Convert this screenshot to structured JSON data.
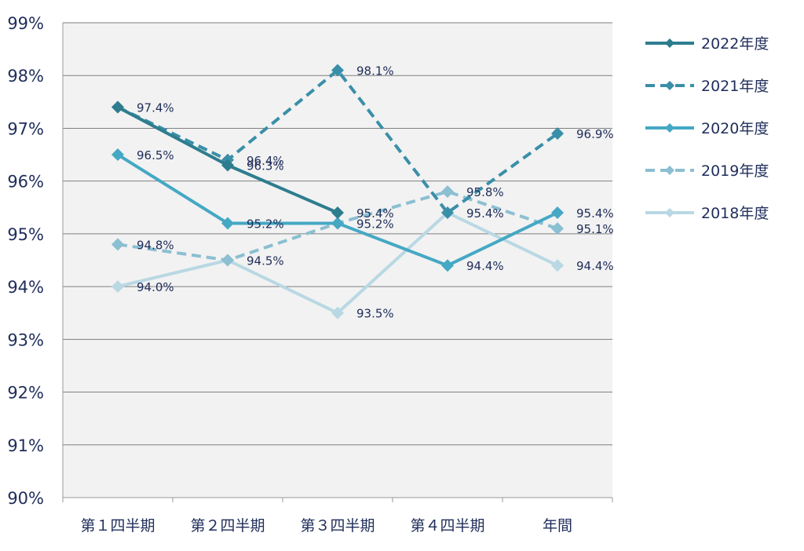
{
  "chart_data": {
    "type": "line",
    "title": "",
    "xlabel": "",
    "ylabel": "",
    "categories": [
      "第１四半期",
      "第２四半期",
      "第３四半期",
      "第４四半期",
      "年間"
    ],
    "ylim": [
      90,
      99
    ],
    "y_ticks": [
      "90%",
      "91%",
      "92%",
      "93%",
      "94%",
      "95%",
      "96%",
      "97%",
      "98%",
      "99%"
    ],
    "y_tick_values": [
      90,
      91,
      92,
      93,
      94,
      95,
      96,
      97,
      98,
      99
    ],
    "grid": true,
    "legend_position": "right",
    "series": [
      {
        "name": "2022年度",
        "color": "#2e7d8f",
        "dashed": false,
        "values": [
          97.4,
          96.3,
          95.4,
          null,
          null
        ],
        "labels": [
          "97.4%",
          "96.3%",
          "95.4%",
          null,
          null
        ]
      },
      {
        "name": "2021年度",
        "color": "#3a8fa8",
        "dashed": true,
        "values": [
          97.4,
          96.4,
          98.1,
          95.4,
          96.9
        ],
        "labels": [
          null,
          "96.4%",
          "98.1%",
          "95.4%",
          "96.9%"
        ]
      },
      {
        "name": "2020年度",
        "color": "#45a8c4",
        "dashed": false,
        "values": [
          96.5,
          95.2,
          95.2,
          94.4,
          95.4
        ],
        "labels": [
          "96.5%",
          "95.2%",
          "95.2%",
          "94.4%",
          "95.4%"
        ]
      },
      {
        "name": "2019年度",
        "color": "#8bbfd2",
        "dashed": true,
        "values": [
          94.8,
          94.5,
          95.2,
          95.8,
          95.1
        ],
        "labels": [
          "94.8%",
          "94.5%",
          null,
          "95.8%",
          "95.1%"
        ]
      },
      {
        "name": "2018年度",
        "color": "#b9d8e3",
        "dashed": false,
        "values": [
          94.0,
          94.5,
          93.5,
          95.4,
          94.4
        ],
        "labels": [
          "94.0%",
          null,
          "93.5%",
          null,
          "94.4%"
        ]
      }
    ]
  }
}
